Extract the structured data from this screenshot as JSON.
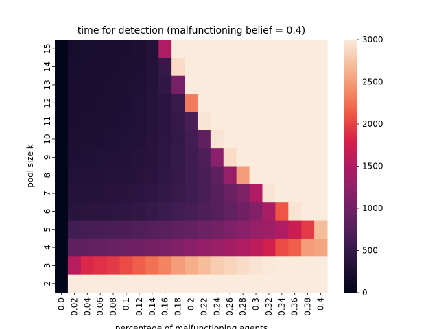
{
  "chart_data": {
    "type": "heatmap",
    "title": "time for detection (malfunctioning belief = 0.4)",
    "xlabel": "percentage of malfunctioning agents",
    "ylabel": "pool size k",
    "x": [
      "0.0",
      "0.02",
      "0.04",
      "0.06",
      "0.08",
      "0.1",
      "0.12",
      "0.14",
      "0.16",
      "0.18",
      "0.2",
      "0.22",
      "0.24",
      "0.26",
      "0.28",
      "0.3",
      "0.32",
      "0.34",
      "0.36",
      "0.38",
      "0.4"
    ],
    "y": [
      "15",
      "14",
      "13",
      "12",
      "11",
      "10",
      "9",
      "8",
      "7",
      "6",
      "5",
      "4",
      "3",
      "2"
    ],
    "values": [
      [
        0,
        200,
        220,
        230,
        240,
        250,
        270,
        320,
        1500,
        3000,
        3000,
        3000,
        3000,
        3000,
        3000,
        3000,
        3000,
        3000,
        3000,
        3000,
        3000
      ],
      [
        0,
        220,
        230,
        240,
        250,
        260,
        280,
        330,
        500,
        2900,
        3000,
        3000,
        3000,
        3000,
        3000,
        3000,
        3000,
        3000,
        3000,
        3000,
        3000
      ],
      [
        0,
        230,
        240,
        250,
        260,
        270,
        290,
        330,
        450,
        1050,
        3000,
        3000,
        3000,
        3000,
        3000,
        3000,
        3000,
        3000,
        3000,
        3000,
        3000
      ],
      [
        0,
        240,
        250,
        260,
        270,
        280,
        300,
        340,
        400,
        520,
        2300,
        3000,
        3000,
        3000,
        3000,
        3000,
        3000,
        3000,
        3000,
        3000,
        3000
      ],
      [
        0,
        250,
        260,
        270,
        280,
        290,
        310,
        350,
        400,
        500,
        650,
        2950,
        3000,
        3000,
        3000,
        3000,
        3000,
        3000,
        3000,
        3000,
        3000
      ],
      [
        0,
        260,
        270,
        280,
        290,
        300,
        320,
        360,
        410,
        480,
        600,
        850,
        2950,
        3000,
        3000,
        3000,
        3000,
        3000,
        3000,
        3000,
        3000
      ],
      [
        0,
        280,
        290,
        300,
        310,
        320,
        340,
        380,
        430,
        490,
        580,
        700,
        1200,
        2900,
        3000,
        3000,
        3000,
        3000,
        3000,
        3000,
        3000
      ],
      [
        0,
        300,
        310,
        320,
        330,
        340,
        360,
        400,
        440,
        500,
        580,
        680,
        850,
        1300,
        2500,
        3000,
        3000,
        3000,
        3000,
        3000,
        3000
      ],
      [
        0,
        330,
        340,
        350,
        360,
        380,
        400,
        430,
        470,
        520,
        580,
        660,
        780,
        950,
        1100,
        1500,
        2950,
        3000,
        3000,
        3000,
        3000
      ],
      [
        0,
        380,
        390,
        400,
        410,
        430,
        460,
        500,
        540,
        580,
        640,
        700,
        780,
        880,
        1000,
        1150,
        1450,
        2100,
        2950,
        3000,
        3000
      ],
      [
        0,
        600,
        620,
        640,
        660,
        690,
        720,
        760,
        800,
        850,
        900,
        960,
        1030,
        1110,
        1200,
        1300,
        1380,
        1500,
        1700,
        1950,
        2700
      ],
      [
        0,
        850,
        870,
        900,
        930,
        960,
        990,
        1030,
        1080,
        1140,
        1200,
        1280,
        1350,
        1420,
        1500,
        1600,
        1750,
        2050,
        2150,
        2500,
        2550
      ],
      [
        0,
        1550,
        1850,
        1900,
        1950,
        2050,
        2150,
        2250,
        2350,
        2500,
        2600,
        2700,
        2800,
        2850,
        2900,
        2950,
        2980,
        3000,
        3000,
        3000,
        3000
      ],
      [
        0,
        3000,
        3000,
        3000,
        3000,
        3000,
        3000,
        3000,
        3000,
        3000,
        3000,
        3000,
        3000,
        3000,
        3000,
        3000,
        3000,
        3000,
        3000,
        3000,
        3000
      ]
    ],
    "colorbar": {
      "min": 0,
      "max": 3000,
      "ticks": [
        "0",
        "500",
        "1000",
        "1500",
        "2000",
        "2500",
        "3000"
      ],
      "colormap": "rocket"
    }
  }
}
